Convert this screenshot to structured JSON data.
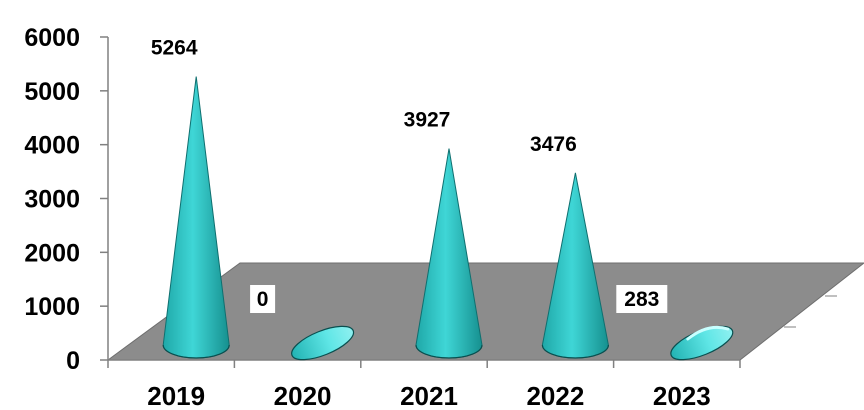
{
  "chart_data": {
    "type": "bar",
    "style": "3d-cone",
    "title": "",
    "xlabel": "",
    "ylabel": "",
    "categories": [
      "2019",
      "2020",
      "2021",
      "2022",
      "2023"
    ],
    "values": [
      5264,
      0,
      3927,
      3476,
      283
    ],
    "data_labels": [
      "5264",
      "0",
      "3927",
      "3476",
      "283"
    ],
    "ylim": [
      0,
      6000
    ],
    "yticks": [
      "0",
      "1000",
      "2000",
      "3000",
      "4000",
      "5000",
      "6000"
    ],
    "grid": false,
    "legend": "none",
    "colors": {
      "cone": "#2ec4c4",
      "cone_light": "#8ff0f0",
      "cone_dark": "#138a8a",
      "floor": "#8c8c8c",
      "axis": "#808080",
      "label_box": "#ffffff"
    }
  }
}
